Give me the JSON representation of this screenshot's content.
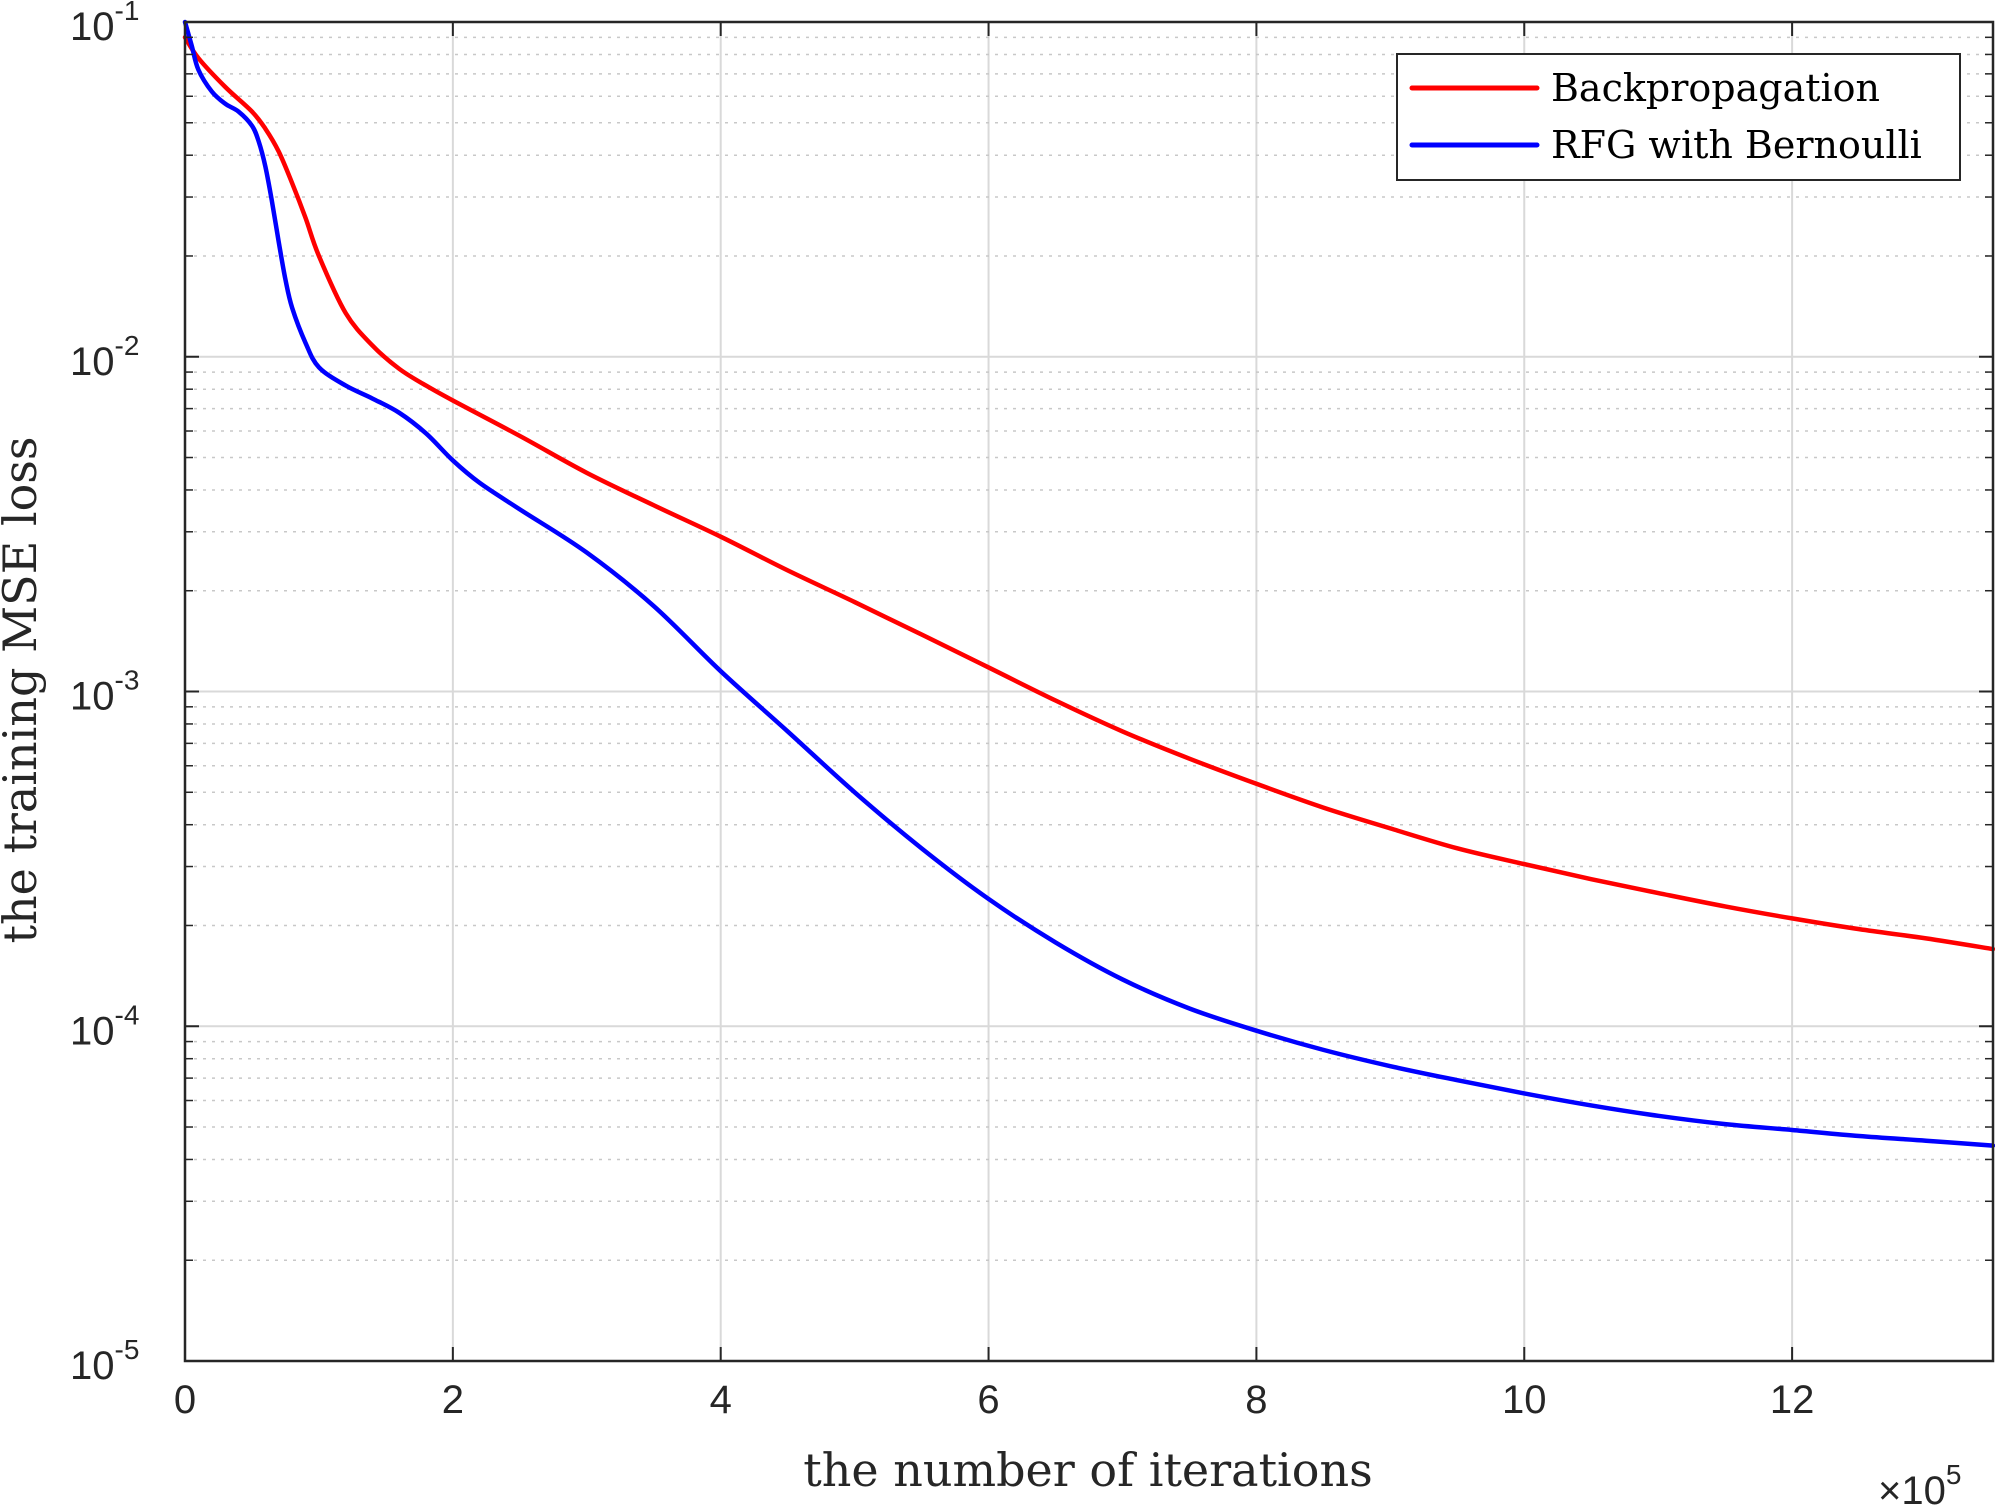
{
  "chart_data": {
    "type": "line",
    "title": "",
    "xlabel": "the number of iterations",
    "ylabel": "the training MSE loss",
    "x_multiplier_label": "×10",
    "x_multiplier_exp": "5",
    "xlim": [
      0,
      13.5
    ],
    "ylim": [
      1e-05,
      0.1
    ],
    "yscale": "log",
    "grid": true,
    "legend_position": "top-right",
    "x_ticks": [
      {
        "value": 0,
        "label": "0"
      },
      {
        "value": 2,
        "label": "2"
      },
      {
        "value": 4,
        "label": "4"
      },
      {
        "value": 6,
        "label": "6"
      },
      {
        "value": 8,
        "label": "8"
      },
      {
        "value": 10,
        "label": "10"
      },
      {
        "value": 12,
        "label": "12"
      }
    ],
    "y_ticks": [
      {
        "value": 0.1,
        "base": "10",
        "exp": "-1"
      },
      {
        "value": 0.01,
        "base": "10",
        "exp": "-2"
      },
      {
        "value": 0.001,
        "base": "10",
        "exp": "-3"
      },
      {
        "value": 0.0001,
        "base": "10",
        "exp": "-4"
      },
      {
        "value": 1e-05,
        "base": "10",
        "exp": "-5"
      }
    ],
    "series": [
      {
        "name": "Backpropagation",
        "color": "#ff0000",
        "x": [
          0,
          0.1,
          0.3,
          0.5,
          0.6,
          0.7,
          0.8,
          0.9,
          1.0,
          1.2,
          1.4,
          1.6,
          1.8,
          2.0,
          2.5,
          3.0,
          3.5,
          4.0,
          4.5,
          5.0,
          5.5,
          6.0,
          6.5,
          7.0,
          7.5,
          8.0,
          8.5,
          9.0,
          9.5,
          10.0,
          10.5,
          11.0,
          11.5,
          12.0,
          12.5,
          13.0,
          13.5
        ],
        "y": [
          0.09,
          0.078,
          0.064,
          0.054,
          0.048,
          0.041,
          0.033,
          0.026,
          0.02,
          0.0135,
          0.0108,
          0.0092,
          0.0082,
          0.0074,
          0.0058,
          0.0045,
          0.0036,
          0.0029,
          0.0023,
          0.00185,
          0.00148,
          0.00118,
          0.00094,
          0.00076,
          0.00063,
          0.00053,
          0.00045,
          0.00039,
          0.00034,
          0.000305,
          0.000275,
          0.00025,
          0.000228,
          0.00021,
          0.000195,
          0.000183,
          0.00017
        ]
      },
      {
        "name": "RFG with Bernoulli",
        "color": "#0000ff",
        "x": [
          0,
          0.05,
          0.1,
          0.2,
          0.3,
          0.4,
          0.5,
          0.55,
          0.6,
          0.65,
          0.7,
          0.75,
          0.8,
          0.9,
          1.0,
          1.2,
          1.4,
          1.6,
          1.8,
          2.0,
          2.2,
          2.5,
          3.0,
          3.5,
          4.0,
          4.5,
          5.0,
          5.5,
          6.0,
          6.5,
          7.0,
          7.5,
          8.0,
          8.5,
          9.0,
          9.5,
          10.0,
          10.5,
          11.0,
          11.5,
          12.0,
          12.5,
          13.0,
          13.5
        ],
        "y": [
          0.1,
          0.085,
          0.072,
          0.062,
          0.057,
          0.054,
          0.049,
          0.044,
          0.037,
          0.029,
          0.022,
          0.017,
          0.014,
          0.011,
          0.0093,
          0.0082,
          0.0075,
          0.0068,
          0.0059,
          0.0049,
          0.0042,
          0.0035,
          0.0026,
          0.0018,
          0.00115,
          0.00076,
          0.0005,
          0.00034,
          0.00024,
          0.000178,
          0.000138,
          0.000113,
          9.7e-05,
          8.5e-05,
          7.6e-05,
          6.9e-05,
          6.3e-05,
          5.8e-05,
          5.4e-05,
          5.1e-05,
          4.9e-05,
          4.7e-05,
          4.55e-05,
          4.4e-05
        ]
      }
    ]
  }
}
